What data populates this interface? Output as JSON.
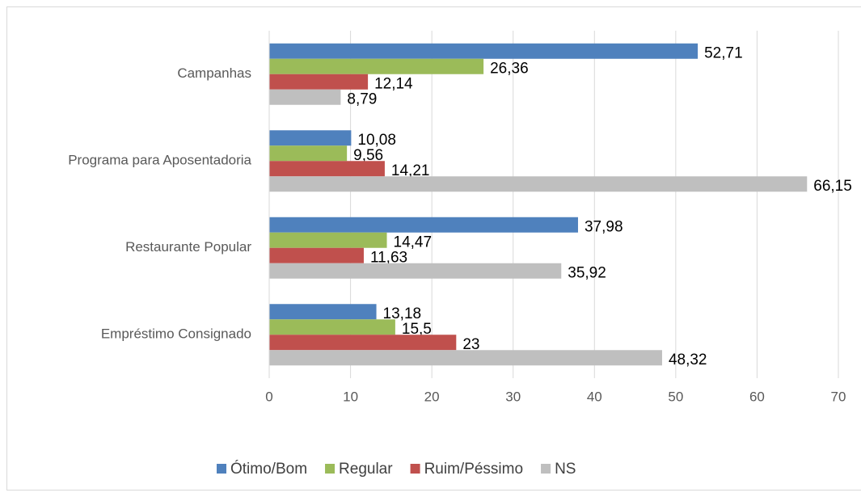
{
  "chart_data": {
    "type": "hbar",
    "categories": [
      "Campanhas",
      "Programa para Aposentadoria",
      "Restaurante Popular",
      "Empréstimo Consignado"
    ],
    "series": [
      {
        "name": "Ótimo/Bom",
        "color": "#4f81bd",
        "values": [
          52.71,
          10.08,
          37.98,
          13.18
        ],
        "value_labels": [
          "52,71",
          "10,08",
          "37,98",
          "13,18"
        ]
      },
      {
        "name": "Regular",
        "color": "#9bbb59",
        "values": [
          26.36,
          9.56,
          14.47,
          15.5
        ],
        "value_labels": [
          "26,36",
          "9,56",
          "14,47",
          "15,5"
        ]
      },
      {
        "name": "Ruim/Péssimo",
        "color": "#c0504d",
        "values": [
          12.14,
          14.21,
          11.63,
          23
        ],
        "value_labels": [
          "12,14",
          "14,21",
          "11,63",
          "23"
        ]
      },
      {
        "name": "NS",
        "color": "#bfbfbf",
        "values": [
          8.79,
          66.15,
          35.92,
          48.32
        ],
        "value_labels": [
          "8,79",
          "66,15",
          "35,92",
          "48,32"
        ]
      }
    ],
    "xlim": [
      0,
      70
    ],
    "xticks": [
      0,
      10,
      20,
      30,
      40,
      50,
      60,
      70
    ],
    "grid": true,
    "legend": "bottom"
  }
}
